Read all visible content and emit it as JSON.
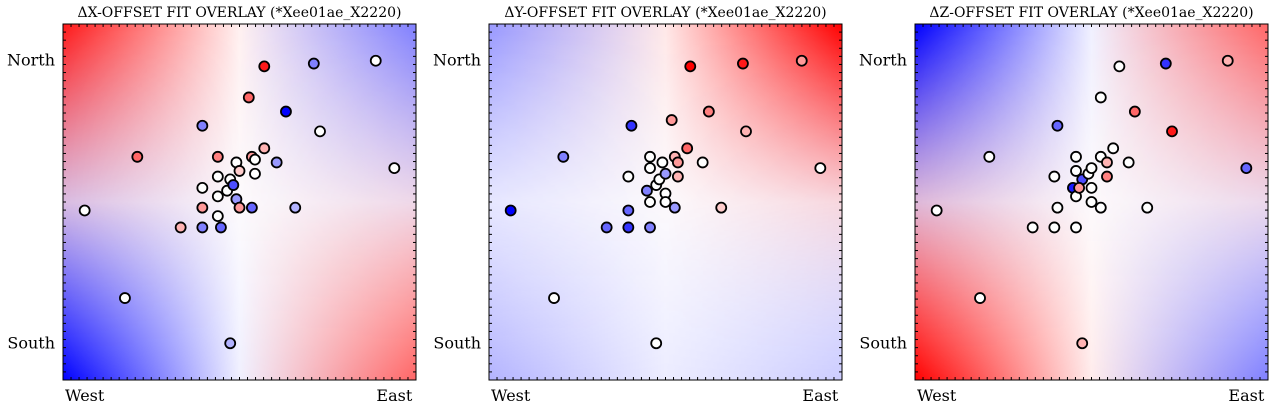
{
  "chart_data": [
    {
      "type": "scatter",
      "title": "ΔX-OFFSET FIT OVERLAY (*Xee01ae_X2220)",
      "xlabel": "",
      "ylabel": "",
      "xticks": [
        "West",
        "East"
      ],
      "yticks": [
        "North",
        "South"
      ],
      "grid": false,
      "colormap": "bwr",
      "background_field": {
        "description": "red top-left and bottom-right, blue bottom-left and right edge",
        "corners": {
          "top_left": 0.9,
          "top_right": -0.5,
          "bottom_left": -1.0,
          "bottom_right": 0.6
        }
      },
      "x_range": [
        -0.07,
        1.07
      ],
      "y_range": [
        -0.13,
        1.13
      ],
      "points": [
        {
          "x": 0.0,
          "y": 0.47,
          "v": 0.0
        },
        {
          "x": 0.13,
          "y": 0.16,
          "v": 0.0
        },
        {
          "x": 0.17,
          "y": 0.66,
          "v": 0.6
        },
        {
          "x": 0.31,
          "y": 0.41,
          "v": 0.3
        },
        {
          "x": 0.38,
          "y": 0.77,
          "v": -0.5
        },
        {
          "x": 0.38,
          "y": 0.55,
          "v": 0.0
        },
        {
          "x": 0.38,
          "y": 0.41,
          "v": -0.5
        },
        {
          "x": 0.38,
          "y": 0.48,
          "v": 0.4
        },
        {
          "x": 0.43,
          "y": 0.66,
          "v": 0.5
        },
        {
          "x": 0.43,
          "y": 0.59,
          "v": 0.0
        },
        {
          "x": 0.43,
          "y": 0.52,
          "v": 0.0
        },
        {
          "x": 0.43,
          "y": 0.45,
          "v": 0.0
        },
        {
          "x": 0.46,
          "y": 0.54,
          "v": 0.0
        },
        {
          "x": 0.47,
          "y": 0.58,
          "v": 0.0
        },
        {
          "x": 0.48,
          "y": 0.56,
          "v": -0.7
        },
        {
          "x": 0.49,
          "y": 0.64,
          "v": 0.0
        },
        {
          "x": 0.5,
          "y": 0.61,
          "v": 0.2
        },
        {
          "x": 0.49,
          "y": 0.51,
          "v": -0.4
        },
        {
          "x": 0.5,
          "y": 0.48,
          "v": 0.4
        },
        {
          "x": 0.44,
          "y": 0.41,
          "v": -0.6
        },
        {
          "x": 0.53,
          "y": 0.87,
          "v": 0.6
        },
        {
          "x": 0.54,
          "y": 0.66,
          "v": 0.4
        },
        {
          "x": 0.55,
          "y": 0.65,
          "v": 0.0
        },
        {
          "x": 0.55,
          "y": 0.6,
          "v": 0.0
        },
        {
          "x": 0.54,
          "y": 0.48,
          "v": -0.6
        },
        {
          "x": 0.58,
          "y": 0.69,
          "v": 0.3
        },
        {
          "x": 0.58,
          "y": 0.98,
          "v": 0.9
        },
        {
          "x": 0.62,
          "y": 0.64,
          "v": -0.4
        },
        {
          "x": 0.65,
          "y": 0.82,
          "v": -1.0
        },
        {
          "x": 0.68,
          "y": 0.48,
          "v": -0.3
        },
        {
          "x": 0.74,
          "y": 0.99,
          "v": -0.5
        },
        {
          "x": 0.76,
          "y": 0.75,
          "v": 0.0
        },
        {
          "x": 0.94,
          "y": 1.0,
          "v": 0.0
        },
        {
          "x": 1.0,
          "y": 0.62,
          "v": 0.0
        },
        {
          "x": 0.47,
          "y": 0.0,
          "v": -0.3
        }
      ]
    },
    {
      "type": "scatter",
      "title": "ΔY-OFFSET FIT OVERLAY (*Xee01ae_X2220)",
      "xlabel": "",
      "ylabel": "",
      "xticks": [
        "West",
        "East"
      ],
      "yticks": [
        "North",
        "South"
      ],
      "grid": false,
      "colormap": "bwr",
      "background_field": {
        "description": "blue on the left side, red top-right, white band through the middle and bottom",
        "corners": {
          "top_left": -0.4,
          "top_right": 1.0,
          "bottom_left": -0.3,
          "bottom_right": -0.2
        }
      },
      "x_range": [
        -0.07,
        1.07
      ],
      "y_range": [
        -0.13,
        1.13
      ],
      "points": [
        {
          "x": 0.0,
          "y": 0.47,
          "v": -1.0
        },
        {
          "x": 0.14,
          "y": 0.16,
          "v": 0.0
        },
        {
          "x": 0.17,
          "y": 0.66,
          "v": -0.5
        },
        {
          "x": 0.31,
          "y": 0.41,
          "v": -0.6
        },
        {
          "x": 0.39,
          "y": 0.77,
          "v": -0.8
        },
        {
          "x": 0.38,
          "y": 0.59,
          "v": 0.0
        },
        {
          "x": 0.38,
          "y": 0.41,
          "v": -0.8
        },
        {
          "x": 0.38,
          "y": 0.47,
          "v": -0.6
        },
        {
          "x": 0.45,
          "y": 0.66,
          "v": 0.0
        },
        {
          "x": 0.45,
          "y": 0.62,
          "v": 0.0
        },
        {
          "x": 0.44,
          "y": 0.54,
          "v": -0.5
        },
        {
          "x": 0.45,
          "y": 0.5,
          "v": 0.0
        },
        {
          "x": 0.47,
          "y": 0.56,
          "v": 0.0
        },
        {
          "x": 0.48,
          "y": 0.58,
          "v": 0.0
        },
        {
          "x": 0.49,
          "y": 0.64,
          "v": 0.0
        },
        {
          "x": 0.5,
          "y": 0.6,
          "v": -0.4
        },
        {
          "x": 0.5,
          "y": 0.53,
          "v": 0.0
        },
        {
          "x": 0.5,
          "y": 0.5,
          "v": 0.0
        },
        {
          "x": 0.45,
          "y": 0.41,
          "v": -0.5
        },
        {
          "x": 0.53,
          "y": 0.66,
          "v": 0.3
        },
        {
          "x": 0.54,
          "y": 0.64,
          "v": 0.4
        },
        {
          "x": 0.54,
          "y": 0.59,
          "v": 0.3
        },
        {
          "x": 0.53,
          "y": 0.48,
          "v": -0.4
        },
        {
          "x": 0.57,
          "y": 0.69,
          "v": 0.6
        },
        {
          "x": 0.58,
          "y": 0.98,
          "v": 1.0
        },
        {
          "x": 0.62,
          "y": 0.64,
          "v": 0.0
        },
        {
          "x": 0.64,
          "y": 0.82,
          "v": 0.5
        },
        {
          "x": 0.68,
          "y": 0.48,
          "v": 0.2
        },
        {
          "x": 0.75,
          "y": 0.99,
          "v": 0.9
        },
        {
          "x": 0.76,
          "y": 0.75,
          "v": 0.3
        },
        {
          "x": 0.94,
          "y": 1.0,
          "v": 0.4
        },
        {
          "x": 1.0,
          "y": 0.62,
          "v": 0.0
        },
        {
          "x": 0.47,
          "y": 0.0,
          "v": 0.0
        },
        {
          "x": 0.52,
          "y": 0.79,
          "v": 0.4
        }
      ]
    },
    {
      "type": "scatter",
      "title": "ΔZ-OFFSET FIT OVERLAY (*Xee01ae_X2220)",
      "xlabel": "",
      "ylabel": "",
      "xticks": [
        "West",
        "East"
      ],
      "yticks": [
        "North",
        "South"
      ],
      "grid": false,
      "colormap": "bwr",
      "background_field": {
        "description": "blue top-left and bottom-right, red diagonal band from bottom-left to top-right",
        "corners": {
          "top_left": -1.0,
          "top_right": 0.6,
          "bottom_left": 1.0,
          "bottom_right": -0.5
        }
      },
      "x_range": [
        -0.07,
        1.07
      ],
      "y_range": [
        -0.13,
        1.13
      ],
      "points": [
        {
          "x": 0.0,
          "y": 0.47,
          "v": 0.0
        },
        {
          "x": 0.14,
          "y": 0.16,
          "v": 0.0
        },
        {
          "x": 0.17,
          "y": 0.66,
          "v": 0.0
        },
        {
          "x": 0.31,
          "y": 0.41,
          "v": 0.0
        },
        {
          "x": 0.39,
          "y": 0.77,
          "v": -0.6
        },
        {
          "x": 0.38,
          "y": 0.59,
          "v": 0.0
        },
        {
          "x": 0.38,
          "y": 0.41,
          "v": 0.0
        },
        {
          "x": 0.39,
          "y": 0.48,
          "v": 0.0
        },
        {
          "x": 0.45,
          "y": 0.66,
          "v": 0.0
        },
        {
          "x": 0.45,
          "y": 0.61,
          "v": 0.0
        },
        {
          "x": 0.44,
          "y": 0.55,
          "v": -0.9
        },
        {
          "x": 0.45,
          "y": 0.52,
          "v": 0.0
        },
        {
          "x": 0.47,
          "y": 0.58,
          "v": -0.7
        },
        {
          "x": 0.46,
          "y": 0.55,
          "v": 0.4
        },
        {
          "x": 0.49,
          "y": 0.6,
          "v": 0.0
        },
        {
          "x": 0.5,
          "y": 0.62,
          "v": 0.0
        },
        {
          "x": 0.5,
          "y": 0.55,
          "v": 0.0
        },
        {
          "x": 0.5,
          "y": 0.5,
          "v": 0.0
        },
        {
          "x": 0.45,
          "y": 0.41,
          "v": 0.0
        },
        {
          "x": 0.53,
          "y": 0.66,
          "v": 0.0
        },
        {
          "x": 0.55,
          "y": 0.64,
          "v": 0.3
        },
        {
          "x": 0.55,
          "y": 0.59,
          "v": 0.5
        },
        {
          "x": 0.53,
          "y": 0.48,
          "v": 0.0
        },
        {
          "x": 0.57,
          "y": 0.69,
          "v": 0.0
        },
        {
          "x": 0.59,
          "y": 0.98,
          "v": 0.0
        },
        {
          "x": 0.62,
          "y": 0.64,
          "v": 0.0
        },
        {
          "x": 0.64,
          "y": 0.82,
          "v": 0.6
        },
        {
          "x": 0.68,
          "y": 0.48,
          "v": 0.0
        },
        {
          "x": 0.74,
          "y": 0.99,
          "v": -0.8
        },
        {
          "x": 0.76,
          "y": 0.75,
          "v": 0.9
        },
        {
          "x": 0.94,
          "y": 1.0,
          "v": 0.3
        },
        {
          "x": 1.0,
          "y": 0.62,
          "v": -0.6
        },
        {
          "x": 0.47,
          "y": 0.0,
          "v": 0.3
        },
        {
          "x": 0.53,
          "y": 0.87,
          "v": 0.0
        }
      ]
    }
  ]
}
